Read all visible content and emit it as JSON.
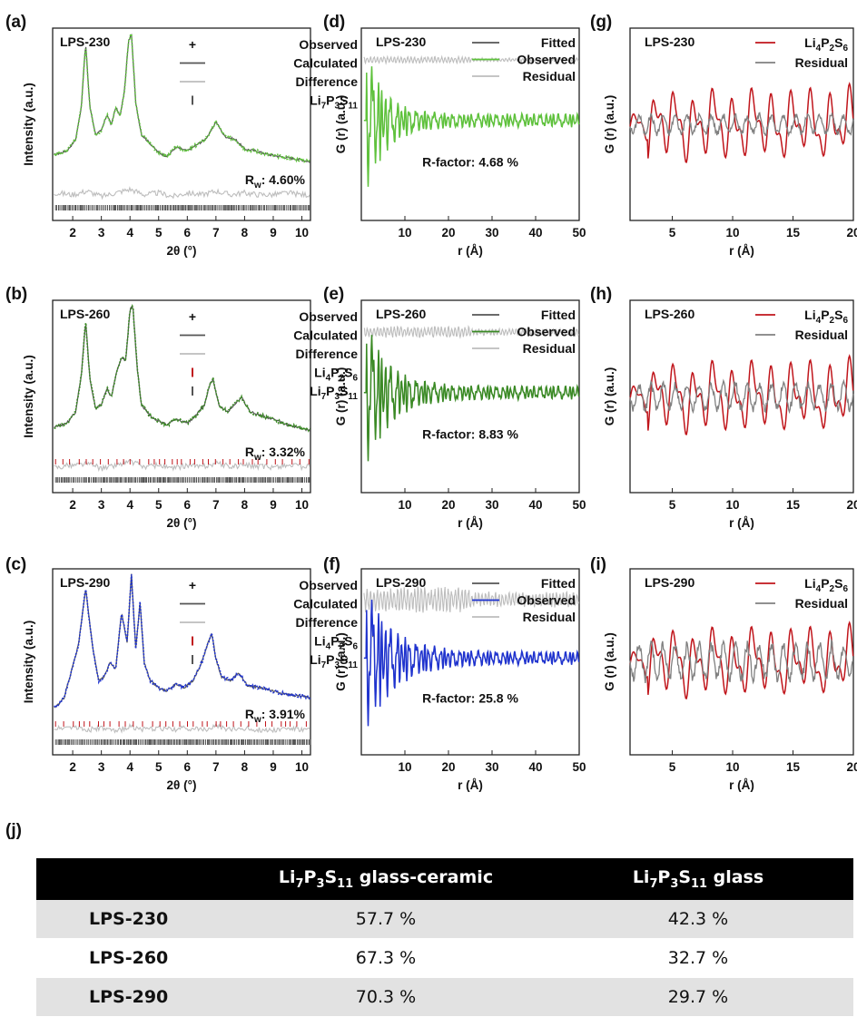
{
  "chart_data": [
    {
      "panel": "(a)",
      "type": "line",
      "sample": "LPS-230",
      "xlabel": "2θ (°)",
      "ylabel": "Intensity (a.u.)",
      "xlim": [
        1.3,
        10.3
      ],
      "xticks": [
        2,
        3,
        4,
        5,
        6,
        7,
        8,
        9,
        10
      ],
      "observed_color": "#5ec23b",
      "series": [
        {
          "name": "Observed",
          "x": [
            1.4,
            1.8,
            2.1,
            2.3,
            2.45,
            2.6,
            2.8,
            3.0,
            3.2,
            3.35,
            3.5,
            3.65,
            3.8,
            3.95,
            4.05,
            4.2,
            4.4,
            4.7,
            5.0,
            5.3,
            5.6,
            6.0,
            6.3,
            6.6,
            6.8,
            7.0,
            7.3,
            7.7,
            8.0,
            8.4,
            8.8,
            9.2,
            9.6,
            10.0,
            10.3
          ],
          "values": [
            0.34,
            0.36,
            0.42,
            0.6,
            0.95,
            0.6,
            0.45,
            0.47,
            0.56,
            0.5,
            0.6,
            0.55,
            0.68,
            0.96,
            1.0,
            0.62,
            0.45,
            0.4,
            0.35,
            0.33,
            0.38,
            0.36,
            0.39,
            0.42,
            0.46,
            0.52,
            0.44,
            0.42,
            0.37,
            0.36,
            0.34,
            0.33,
            0.32,
            0.31,
            0.3
          ]
        },
        {
          "name": "Difference",
          "x": [
            1.4,
            2.0,
            2.5,
            3.0,
            3.5,
            4.0,
            4.5,
            5.0,
            5.5,
            6.0,
            6.5,
            7.0,
            7.5,
            8.0,
            8.5,
            9.0,
            9.5,
            10.0,
            10.3
          ],
          "values": [
            0.13,
            0.12,
            0.14,
            0.11,
            0.13,
            0.15,
            0.12,
            0.13,
            0.11,
            0.13,
            0.12,
            0.14,
            0.12,
            0.13,
            0.12,
            0.12,
            0.13,
            0.12,
            0.12
          ]
        }
      ],
      "legend": [
        "Observed",
        "Calculated",
        "Difference",
        "Li7P3S11"
      ],
      "phases": [
        "Li7P3S11"
      ],
      "annotation": "Rw: 4.60%"
    },
    {
      "panel": "(b)",
      "type": "line",
      "sample": "LPS-260",
      "xlabel": "2θ (°)",
      "ylabel": "Intensity (a.u.)",
      "xlim": [
        1.3,
        10.3
      ],
      "xticks": [
        2,
        3,
        4,
        5,
        6,
        7,
        8,
        9,
        10
      ],
      "observed_color": "#3a8a24",
      "series": [
        {
          "name": "Observed",
          "x": [
            1.4,
            1.8,
            2.1,
            2.3,
            2.45,
            2.6,
            2.8,
            3.0,
            3.2,
            3.35,
            3.5,
            3.7,
            3.85,
            4.0,
            4.1,
            4.25,
            4.4,
            4.7,
            5.0,
            5.3,
            5.6,
            6.0,
            6.3,
            6.6,
            6.8,
            6.9,
            7.1,
            7.4,
            7.7,
            7.9,
            8.2,
            8.6,
            9.0,
            9.5,
            10.0,
            10.3
          ],
          "values": [
            0.34,
            0.36,
            0.42,
            0.62,
            0.92,
            0.6,
            0.44,
            0.46,
            0.55,
            0.5,
            0.62,
            0.72,
            0.7,
            0.98,
            1.0,
            0.66,
            0.46,
            0.4,
            0.37,
            0.35,
            0.38,
            0.36,
            0.4,
            0.46,
            0.58,
            0.6,
            0.46,
            0.42,
            0.47,
            0.5,
            0.42,
            0.4,
            0.38,
            0.35,
            0.33,
            0.32
          ]
        },
        {
          "name": "Difference",
          "x": [
            1.4,
            2.0,
            2.5,
            3.0,
            3.5,
            4.0,
            4.5,
            5.0,
            5.5,
            6.0,
            6.5,
            7.0,
            7.5,
            8.0,
            8.5,
            9.0,
            9.5,
            10.0,
            10.3
          ],
          "values": [
            0.12,
            0.13,
            0.14,
            0.11,
            0.13,
            0.15,
            0.12,
            0.13,
            0.11,
            0.13,
            0.12,
            0.14,
            0.12,
            0.13,
            0.12,
            0.12,
            0.13,
            0.12,
            0.12
          ]
        }
      ],
      "legend": [
        "Observed",
        "Calculated",
        "Difference",
        "Li4P2S6",
        "Li7P3S11"
      ],
      "phases": [
        "Li4P2S6",
        "Li7P3S11"
      ],
      "annotation": "Rw: 3.32%"
    },
    {
      "panel": "(c)",
      "type": "line",
      "sample": "LPS-290",
      "xlabel": "2θ (°)",
      "ylabel": "Intensity (a.u.)",
      "xlim": [
        1.3,
        10.3
      ],
      "xticks": [
        2,
        3,
        4,
        5,
        6,
        7,
        8,
        9,
        10
      ],
      "observed_color": "#1f33cf",
      "series": [
        {
          "name": "Observed",
          "x": [
            1.4,
            1.7,
            1.9,
            2.2,
            2.45,
            2.7,
            2.9,
            3.1,
            3.3,
            3.5,
            3.7,
            3.9,
            4.05,
            4.2,
            4.35,
            4.5,
            4.7,
            5.0,
            5.3,
            5.6,
            5.9,
            6.2,
            6.5,
            6.7,
            6.85,
            7.0,
            7.2,
            7.5,
            7.8,
            8.1,
            8.5,
            9.0,
            9.5,
            10.0,
            10.3
          ],
          "values": [
            0.25,
            0.3,
            0.42,
            0.6,
            0.92,
            0.58,
            0.4,
            0.42,
            0.5,
            0.46,
            0.78,
            0.62,
            1.0,
            0.58,
            0.84,
            0.5,
            0.4,
            0.36,
            0.34,
            0.38,
            0.36,
            0.4,
            0.5,
            0.6,
            0.67,
            0.52,
            0.42,
            0.4,
            0.44,
            0.37,
            0.36,
            0.34,
            0.32,
            0.31,
            0.3
          ]
        },
        {
          "name": "Difference",
          "x": [
            1.4,
            2.0,
            2.5,
            3.0,
            3.5,
            4.0,
            4.5,
            5.0,
            5.5,
            6.0,
            6.5,
            7.0,
            7.5,
            8.0,
            8.5,
            9.0,
            9.5,
            10.0,
            10.3
          ],
          "values": [
            0.13,
            0.14,
            0.12,
            0.13,
            0.11,
            0.14,
            0.12,
            0.13,
            0.12,
            0.13,
            0.12,
            0.14,
            0.12,
            0.13,
            0.12,
            0.12,
            0.13,
            0.12,
            0.12
          ]
        }
      ],
      "legend": [
        "Observed",
        "Calculated",
        "Difference",
        "Li4P2S6",
        "Li7P3S11"
      ],
      "phases": [
        "Li4P2S6",
        "Li7P3S11"
      ],
      "annotation": "Rw: 3.91%"
    },
    {
      "panel": "(d)",
      "type": "line",
      "sample": "LPS-230",
      "xlabel": "r (Å)",
      "ylabel": "G (r) (a.u.)",
      "xlim": [
        0,
        50
      ],
      "xticks": [
        10,
        20,
        30,
        40,
        50
      ],
      "observed_color": "#5ec23b",
      "legend": [
        "Fitted",
        "Observed",
        "Residual"
      ],
      "series": [
        {
          "name": "Observed",
          "decay_length_A": 4.5,
          "initial_amplitude": 0.45,
          "baseline": 0.0
        },
        {
          "name": "Residual",
          "amplitude": 0.02,
          "offset": -0.35
        }
      ],
      "annotation": "R-factor: 4.68 %"
    },
    {
      "panel": "(e)",
      "type": "line",
      "sample": "LPS-260",
      "xlabel": "r (Å)",
      "ylabel": "G (r) (a.u.)",
      "xlim": [
        0,
        50
      ],
      "xticks": [
        10,
        20,
        30,
        40,
        50
      ],
      "observed_color": "#3a8a24",
      "legend": [
        "Fitted",
        "Observed",
        "Residual"
      ],
      "series": [
        {
          "name": "Observed",
          "decay_length_A": 5.5,
          "initial_amplitude": 0.45,
          "baseline": 0.0
        },
        {
          "name": "Residual",
          "amplitude": 0.035,
          "offset": -0.35
        }
      ],
      "annotation": "R-factor: 8.83 %"
    },
    {
      "panel": "(f)",
      "type": "line",
      "sample": "LPS-290",
      "xlabel": "r (Å)",
      "ylabel": "G (r) (a.u.)",
      "xlim": [
        0,
        50
      ],
      "xticks": [
        10,
        20,
        30,
        40,
        50
      ],
      "observed_color": "#1f33cf",
      "legend": [
        "Fitted",
        "Observed",
        "Residual"
      ],
      "series": [
        {
          "name": "Observed",
          "decay_length_A": 6.5,
          "initial_amplitude": 0.45,
          "baseline": 0.0
        },
        {
          "name": "Residual",
          "amplitude": 0.08,
          "offset": -0.35
        }
      ],
      "annotation": "R-factor: 25.8 %"
    },
    {
      "panel": "(g)",
      "type": "line",
      "sample": "LPS-230",
      "xlabel": "r (Å)",
      "ylabel": "G (r) (a.u.)",
      "xlim": [
        1.5,
        20
      ],
      "xticks": [
        5,
        10,
        15,
        20
      ],
      "legend": [
        "Li4P2S6",
        "Residual"
      ],
      "series_colors": {
        "Li4P2S6": "#c0151b",
        "Residual": "#808080"
      },
      "series": [
        {
          "name": "Li4P2S6",
          "amplitude": 0.45
        },
        {
          "name": "Residual",
          "amplitude": 0.15
        }
      ]
    },
    {
      "panel": "(h)",
      "type": "line",
      "sample": "LPS-260",
      "xlabel": "r (Å)",
      "ylabel": "G (r) (a.u.)",
      "xlim": [
        1.5,
        20
      ],
      "xticks": [
        5,
        10,
        15,
        20
      ],
      "legend": [
        "Li4P2S6",
        "Residual"
      ],
      "series_colors": {
        "Li4P2S6": "#c0151b",
        "Residual": "#808080"
      },
      "series": [
        {
          "name": "Li4P2S6",
          "amplitude": 0.45
        },
        {
          "name": "Residual",
          "amplitude": 0.2
        }
      ]
    },
    {
      "panel": "(i)",
      "type": "line",
      "sample": "LPS-290",
      "xlabel": "r (Å)",
      "ylabel": "G (r) (a.u.)",
      "xlim": [
        1.5,
        20
      ],
      "xticks": [
        5,
        10,
        15,
        20
      ],
      "legend": [
        "Li4P2S6",
        "Residual"
      ],
      "series_colors": {
        "Li4P2S6": "#c0151b",
        "Residual": "#808080"
      },
      "series": [
        {
          "name": "Li4P2S6",
          "amplitude": 0.45
        },
        {
          "name": "Residual",
          "amplitude": 0.28
        }
      ]
    },
    {
      "panel": "(j)",
      "type": "table",
      "columns": [
        "",
        "Li7P3S11 glass-ceramic",
        "Li7P3S11 glass"
      ],
      "rows": [
        {
          "sample": "LPS-230",
          "glass_ceramic": "57.7 %",
          "glass": "42.3 %"
        },
        {
          "sample": "LPS-260",
          "glass_ceramic": "67.3 %",
          "glass": "32.7 %"
        },
        {
          "sample": "LPS-290",
          "glass_ceramic": "70.3 %",
          "glass": "29.7 %"
        }
      ]
    }
  ],
  "table": {
    "panel_letter": "(j)",
    "header": {
      "col1": {
        "formula": [
          [
            "Li",
            ""
          ],
          [
            "7",
            "sub"
          ],
          [
            "P",
            ""
          ],
          [
            "3",
            "sub"
          ],
          [
            "S",
            ""
          ],
          [
            "11",
            "sub"
          ],
          [
            " glass-ceramic",
            ""
          ]
        ]
      },
      "col2": {
        "formula": [
          [
            "Li",
            ""
          ],
          [
            "7",
            "sub"
          ],
          [
            "P",
            ""
          ],
          [
            "3",
            "sub"
          ],
          [
            "S",
            ""
          ],
          [
            "11",
            "sub"
          ],
          [
            " glass",
            ""
          ]
        ]
      }
    },
    "rows": [
      {
        "sample": "LPS-230",
        "glass_ceramic": "57.7 %",
        "glass": "42.3 %"
      },
      {
        "sample": "LPS-260",
        "glass_ceramic": "67.3 %",
        "glass": "32.7 %"
      },
      {
        "sample": "LPS-290",
        "glass_ceramic": "70.3 %",
        "glass": "29.7 %"
      }
    ]
  },
  "colors": {
    "calculated": "#555555",
    "difference": "#bdbdbd",
    "li7p3s11_tick": "#555555",
    "li4p2s6_tick": "#c0151b",
    "fitted": "#555555",
    "residual_pdf": "#bdbdbd"
  },
  "formula_parts": {
    "Li7P3S11": [
      [
        "Li",
        ""
      ],
      [
        "7",
        "sub"
      ],
      [
        "P",
        ""
      ],
      [
        "3",
        "sub"
      ],
      [
        "S",
        ""
      ],
      [
        "11",
        "sub"
      ]
    ],
    "Li4P2S6": [
      [
        "Li",
        ""
      ],
      [
        "4",
        "sub"
      ],
      [
        "P",
        ""
      ],
      [
        "2",
        "sub"
      ],
      [
        "S",
        ""
      ],
      [
        "6",
        "sub"
      ]
    ],
    "Rw": [
      [
        "R",
        ""
      ],
      [
        "w",
        "sub"
      ]
    ]
  }
}
